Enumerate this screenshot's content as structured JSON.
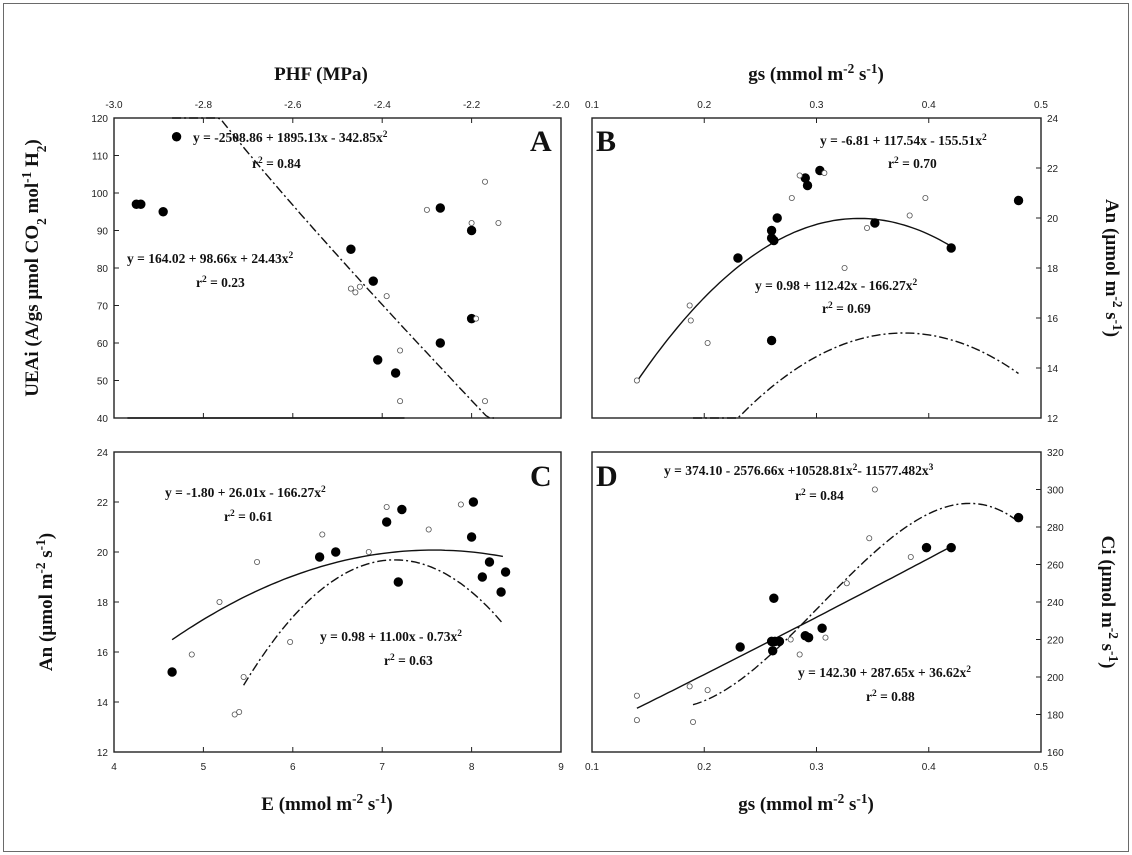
{
  "chart_data": [
    {
      "id": "A",
      "type": "scatter",
      "panel_label": "A",
      "xlabel_bottom": "E (mmol m-2 s-1)",
      "xlabel_top": "PHF (MPa)",
      "ylabel_left": "UEAi (A/gs µmol CO2 mol-1 H2O)",
      "xlim": [
        4,
        9
      ],
      "xlim_top": [
        -3.0,
        -2.0
      ],
      "ylim": [
        40,
        120
      ],
      "xticks_top": [
        "-3.0",
        "-2.8",
        "-2.6",
        "-2.4",
        "-2.2",
        "-2.0"
      ],
      "yticks": [
        "40",
        "50",
        "60",
        "70",
        "80",
        "90",
        "100",
        "110",
        "120"
      ],
      "grid": false,
      "series": [
        {
          "marker": "filled",
          "axis": "top",
          "x": [
            -2.95,
            -2.94,
            -2.86,
            -2.89,
            -2.47,
            -2.42,
            -2.41,
            -2.37,
            -2.27,
            -2.27,
            -2.2,
            -2.2
          ],
          "y": [
            97,
            97,
            115,
            95,
            85,
            76.5,
            55.5,
            52,
            96,
            60,
            90,
            66.5
          ]
        },
        {
          "marker": "open",
          "axis": "top",
          "x": [
            -2.47,
            -2.46,
            -2.45,
            -2.39,
            -2.36,
            -2.36,
            -2.3,
            -2.2,
            -2.19,
            -2.17,
            -2.17,
            -2.14
          ],
          "y": [
            74.5,
            73.5,
            75,
            72.5,
            58,
            44.5,
            95.5,
            92,
            66.5,
            103,
            44.5,
            92
          ]
        }
      ],
      "fits": [
        {
          "style": "solid",
          "equation": "y = -2508.86 + 1895.13x - 342.85x2",
          "r2": "r2 = 0.84",
          "x_range": [
            -2.97,
            -2.36
          ]
        },
        {
          "style": "dashdot",
          "equation": "y = 164.02 + 98.66x + 24.43x2",
          "r2": "r2 = 0.23",
          "x_range": [
            -2.87,
            -2.15
          ]
        }
      ]
    },
    {
      "id": "B",
      "type": "scatter",
      "panel_label": "B",
      "xlabel_top": "gs (mmol m-2 s-1)",
      "ylabel_right": "An (µmol m-2 s-1)",
      "xlim": [
        0.1,
        0.5
      ],
      "ylim": [
        12,
        24
      ],
      "xticks_top": [
        "0.1",
        "0.2",
        "0.3",
        "0.4",
        "0.5"
      ],
      "yticks": [
        "12",
        "14",
        "16",
        "18",
        "20",
        "22",
        "24"
      ],
      "grid": false,
      "series": [
        {
          "marker": "filled",
          "x": [
            0.23,
            0.26,
            0.26,
            0.262,
            0.265,
            0.26,
            0.29,
            0.292,
            0.303,
            0.352,
            0.42,
            0.48
          ],
          "y": [
            18.4,
            19.5,
            19.2,
            19.1,
            20,
            15.1,
            21.6,
            21.3,
            21.9,
            19.8,
            18.8,
            20.7
          ]
        },
        {
          "marker": "open",
          "x": [
            0.14,
            0.187,
            0.188,
            0.203,
            0.278,
            0.285,
            0.307,
            0.325,
            0.345,
            0.383,
            0.397
          ],
          "y": [
            13.5,
            16.5,
            15.9,
            15,
            20.8,
            21.7,
            21.8,
            18,
            19.6,
            20.1,
            20.8
          ]
        }
      ],
      "fits": [
        {
          "style": "solid",
          "equation": "y = 0.98 + 112.42x - 166.27x2",
          "r2": "r2 = 0.69",
          "x_range": [
            0.14,
            0.42
          ]
        },
        {
          "style": "dashdot",
          "equation": "y = -6.81 + 117.54x - 155.51x2",
          "r2": "r2 = 0.70",
          "x_range": [
            0.19,
            0.48
          ]
        }
      ]
    },
    {
      "id": "C",
      "type": "scatter",
      "panel_label": "C",
      "xlabel_bottom": "E (mmol m-2 s-1)",
      "ylabel_left": "An (µmol m-2 s-1)",
      "xlim": [
        4,
        9
      ],
      "ylim": [
        12,
        24
      ],
      "xticks": [
        "4",
        "5",
        "6",
        "7",
        "8",
        "9"
      ],
      "yticks": [
        "12",
        "14",
        "16",
        "18",
        "20",
        "22",
        "24"
      ],
      "grid": false,
      "series": [
        {
          "marker": "filled",
          "x": [
            4.65,
            6.3,
            6.48,
            7.05,
            7.18,
            7.22,
            8.0,
            8.02,
            8.12,
            8.2,
            8.33,
            8.38
          ],
          "y": [
            15.2,
            19.8,
            20,
            21.2,
            18.8,
            21.7,
            20.6,
            22,
            19,
            19.6,
            18.4,
            19.2
          ]
        },
        {
          "marker": "open",
          "x": [
            4.87,
            5.18,
            5.35,
            5.4,
            5.45,
            5.6,
            5.97,
            6.33,
            6.85,
            7.05,
            7.52,
            7.88
          ],
          "y": [
            15.9,
            18,
            13.5,
            13.6,
            15,
            19.6,
            16.4,
            20.7,
            20,
            21.8,
            20.9,
            21.9
          ]
        }
      ],
      "fits": [
        {
          "style": "solid",
          "equation": "y = 0.98 + 11.00x - 0.73x2",
          "r2": "r2 = 0.63",
          "x_range": [
            4.65,
            8.35
          ]
        },
        {
          "style": "dashdot",
          "equation": "y = -1.80 + 26.01x - 166.27x2",
          "r2": "r2 = 0.61",
          "x_range": [
            5.45,
            8.35
          ]
        }
      ]
    },
    {
      "id": "D",
      "type": "scatter",
      "panel_label": "D",
      "xlabel_bottom": "gs (mmol m-2 s-1)",
      "ylabel_right": "Ci (µmol m-2 s-1)",
      "xlim": [
        0.1,
        0.5
      ],
      "ylim": [
        160,
        320
      ],
      "xticks": [
        "0.1",
        "0.2",
        "0.3",
        "0.4",
        "0.5"
      ],
      "yticks": [
        "160",
        "180",
        "200",
        "220",
        "240",
        "260",
        "280",
        "300",
        "320"
      ],
      "grid": false,
      "series": [
        {
          "marker": "filled",
          "x": [
            0.232,
            0.26,
            0.261,
            0.262,
            0.263,
            0.267,
            0.29,
            0.293,
            0.305,
            0.398,
            0.42,
            0.48
          ],
          "y": [
            216,
            219,
            214,
            242,
            219,
            219,
            222,
            221,
            226,
            269,
            269,
            285
          ]
        },
        {
          "marker": "open",
          "x": [
            0.14,
            0.14,
            0.187,
            0.19,
            0.203,
            0.277,
            0.285,
            0.308,
            0.327,
            0.347,
            0.352,
            0.384
          ],
          "y": [
            190,
            177,
            195,
            176,
            193,
            220,
            212,
            221,
            250,
            274,
            300,
            264
          ]
        }
      ],
      "fits": [
        {
          "style": "solid",
          "equation": "y = 142.30 + 287.65x + 36.62x2",
          "r2": "r2 = 0.88",
          "x_range": [
            0.14,
            0.42
          ]
        },
        {
          "style": "dashdot",
          "equation": "y = 374.10 - 2576.66x +10528.81x2- 11577.482x3",
          "r2": "r2 = 0.84",
          "x_range": [
            0.19,
            0.48
          ]
        }
      ]
    }
  ]
}
